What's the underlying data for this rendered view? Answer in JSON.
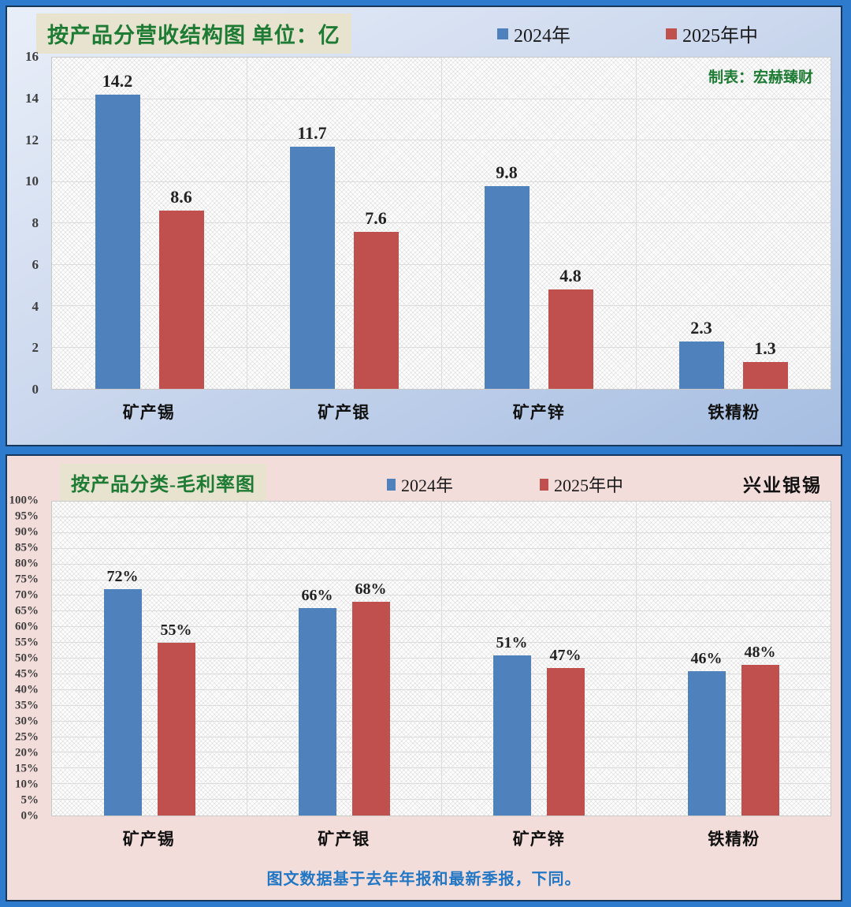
{
  "colors": {
    "series_2024_blue": "#4f81bd",
    "series_2025_red": "#c0504d",
    "title_green": "#1e7b34",
    "footnote_blue": "#2277c5",
    "panel1_bg_top": "#e9eff9",
    "panel1_bg_bottom": "#a6bee2",
    "panel2_bg": "#f2dddb",
    "frame_blue": "#2e7bcd",
    "panel_border": "#16365c"
  },
  "chart_data": [
    {
      "type": "bar",
      "title": "按产品分营收结构图 单位：亿",
      "credit": "制表：宏赫臻财",
      "categories": [
        "矿产锡",
        "矿产银",
        "矿产锌",
        "铁精粉"
      ],
      "series": [
        {
          "name": "2024年",
          "color": "#4f81bd",
          "values": [
            14.2,
            11.7,
            9.8,
            2.3
          ],
          "labels": [
            "14.2",
            "11.7",
            "9.8",
            "2.3"
          ]
        },
        {
          "name": "2025年中",
          "color": "#c0504d",
          "values": [
            8.6,
            7.6,
            4.8,
            1.3
          ],
          "labels": [
            "8.6",
            "7.6",
            "4.8",
            "1.3"
          ]
        }
      ],
      "ylim": [
        0,
        16
      ],
      "yticks": [
        "0",
        "2",
        "4",
        "6",
        "8",
        "10",
        "12",
        "14",
        "16"
      ],
      "grid": true,
      "legend_position": "top"
    },
    {
      "type": "bar",
      "title": "按产品分类-毛利率图",
      "brand": "兴业银锡",
      "footnote": "图文数据基于去年年报和最新季报，下同。",
      "categories": [
        "矿产锡",
        "矿产银",
        "矿产锌",
        "铁精粉"
      ],
      "series": [
        {
          "name": "2024年",
          "color": "#4f81bd",
          "values": [
            72,
            66,
            51,
            46
          ],
          "labels": [
            "72%",
            "66%",
            "51%",
            "46%"
          ]
        },
        {
          "name": "2025年中",
          "color": "#c0504d",
          "values": [
            55,
            68,
            47,
            48
          ],
          "labels": [
            "55%",
            "68%",
            "47%",
            "48%"
          ]
        }
      ],
      "ylim": [
        0,
        100
      ],
      "yticks": [
        "0%",
        "5%",
        "10%",
        "15%",
        "20%",
        "25%",
        "30%",
        "35%",
        "40%",
        "45%",
        "50%",
        "55%",
        "60%",
        "65%",
        "70%",
        "75%",
        "80%",
        "85%",
        "90%",
        "95%",
        "100%"
      ],
      "grid": true,
      "legend_position": "top"
    }
  ]
}
